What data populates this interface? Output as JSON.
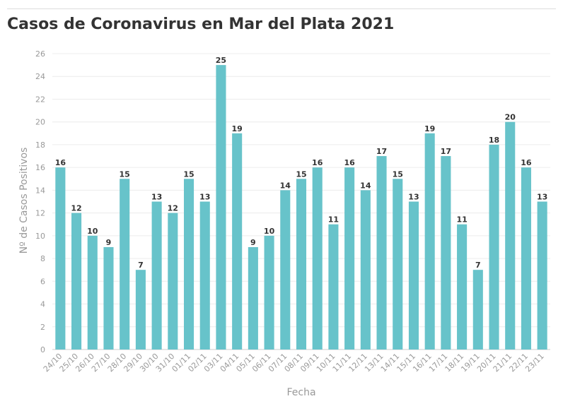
{
  "header": {
    "title": "Casos de Coronavirus en Mar del Plata 2021"
  },
  "chart_data": {
    "type": "bar",
    "title": "Casos de Coronavirus en Mar del Plata 2021",
    "xlabel": "Fecha",
    "ylabel": "Nº de Casos Positivos",
    "ylim": [
      0,
      26
    ],
    "yticks": [
      0,
      2,
      4,
      6,
      8,
      10,
      12,
      14,
      16,
      18,
      20,
      22,
      24,
      26
    ],
    "grid": true,
    "bar_color": "#67c3ca",
    "categories": [
      "24/10",
      "25/10",
      "26/10",
      "27/10",
      "28/10",
      "29/10",
      "30/10",
      "31/10",
      "01/11",
      "02/11",
      "03/11",
      "04/11",
      "05/11",
      "06/11",
      "07/11",
      "08/11",
      "09/11",
      "10/11",
      "11/11",
      "12/11",
      "13/11",
      "14/11",
      "15/11",
      "16/11",
      "17/11",
      "18/11",
      "19/11",
      "20/11",
      "21/11",
      "22/11",
      "23/11"
    ],
    "values": [
      16,
      12,
      10,
      9,
      15,
      7,
      13,
      12,
      15,
      13,
      25,
      19,
      9,
      10,
      14,
      15,
      16,
      11,
      16,
      14,
      17,
      15,
      13,
      19,
      17,
      11,
      7,
      18,
      20,
      16,
      13
    ]
  }
}
